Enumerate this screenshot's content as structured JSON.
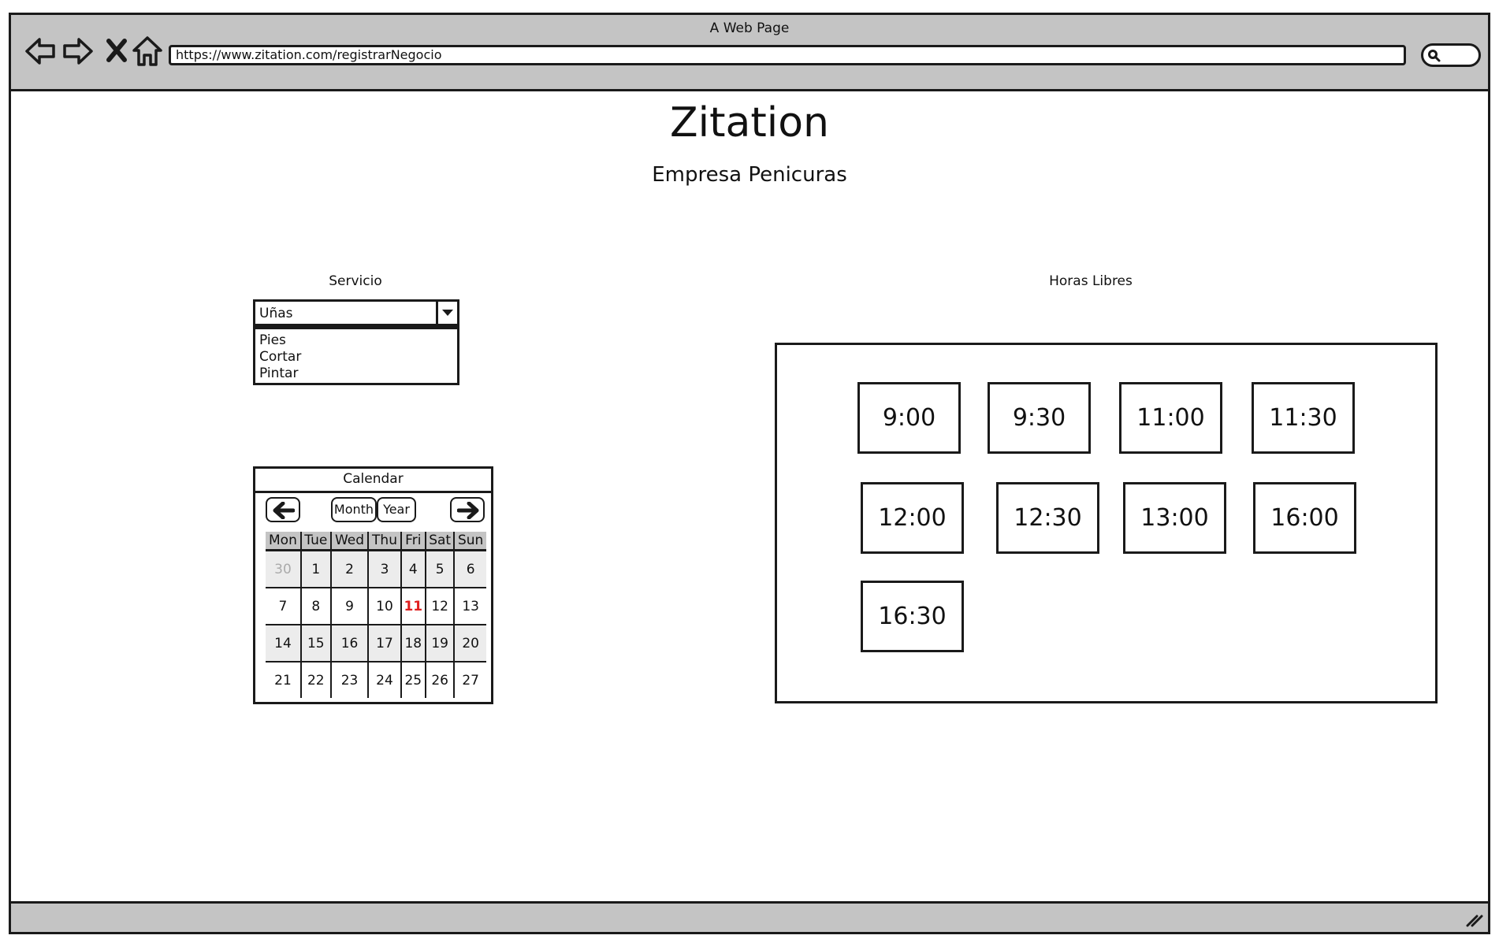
{
  "browser": {
    "window_title": "A Web Page",
    "url": "https://www.zitation.com/registrarNegocio"
  },
  "header": {
    "title": "Zitation",
    "subtitle": "Empresa Penicuras"
  },
  "service": {
    "label": "Servicio",
    "selected": "Uñas",
    "options": [
      "Pies",
      "Cortar",
      "Pintar"
    ]
  },
  "calendar": {
    "title": "Calendar",
    "month_button": "Month",
    "year_button": "Year",
    "weekdays": [
      "Mon",
      "Tue",
      "Wed",
      "Thu",
      "Fri",
      "Sat",
      "Sun"
    ],
    "weeks": [
      [
        "30",
        "1",
        "2",
        "3",
        "4",
        "5",
        "6"
      ],
      [
        "7",
        "8",
        "9",
        "10",
        "11",
        "12",
        "13"
      ],
      [
        "14",
        "15",
        "16",
        "17",
        "18",
        "19",
        "20"
      ],
      [
        "21",
        "22",
        "23",
        "24",
        "25",
        "26",
        "27"
      ]
    ],
    "today": "11",
    "today_color": "#e02020"
  },
  "free_hours": {
    "label": "Horas Libres",
    "slots": [
      "9:00",
      "9:30",
      "11:00",
      "11:30",
      "12:00",
      "12:30",
      "13:00",
      "16:00",
      "16:30"
    ]
  },
  "icons": [
    "back-arrow-icon",
    "forward-arrow-icon",
    "stop-x-icon",
    "home-icon",
    "search-icon",
    "resize-grip-icon",
    "arrow-left-icon",
    "arrow-right-icon",
    "dropdown-caret-icon"
  ]
}
